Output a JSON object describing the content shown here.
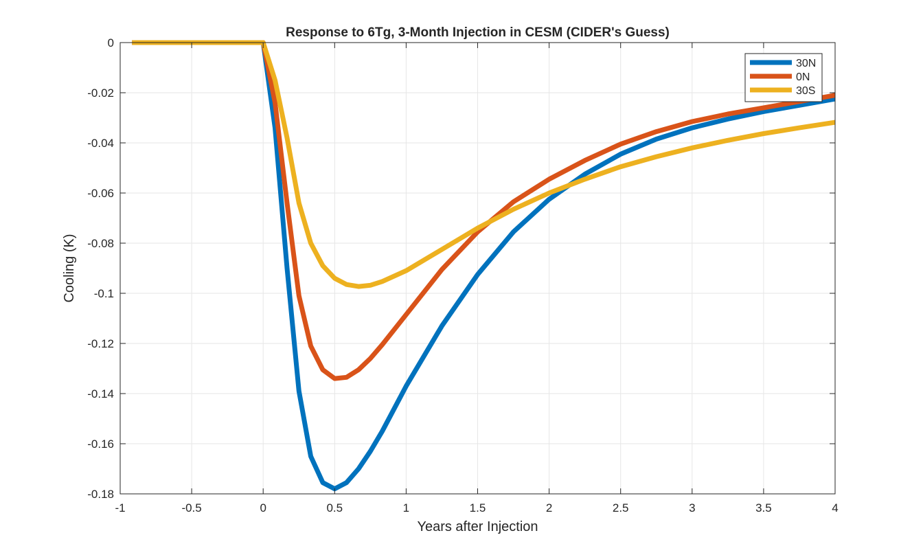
{
  "chart_data": {
    "type": "line",
    "title": "Response to 6Tg, 3-Month Injection in CESM (CIDER's Guess)",
    "xlabel": "Years after Injection",
    "ylabel": "Cooling (K)",
    "xlim": [
      -1,
      4
    ],
    "ylim": [
      -0.18,
      0
    ],
    "xticks": [
      -1,
      -0.5,
      0,
      0.5,
      1,
      1.5,
      2,
      2.5,
      3,
      3.5,
      4
    ],
    "xtick_labels": [
      "-1",
      "-0.5",
      "0",
      "0.5",
      "1",
      "1.5",
      "2",
      "2.5",
      "3",
      "3.5",
      "4"
    ],
    "yticks": [
      0,
      -0.02,
      -0.04,
      -0.06,
      -0.08,
      -0.1,
      -0.12,
      -0.14,
      -0.16,
      -0.18
    ],
    "ytick_labels": [
      "0",
      "-0.02",
      "-0.04",
      "-0.06",
      "-0.08",
      "-0.1",
      "-0.12",
      "-0.14",
      "-0.16",
      "-0.18"
    ],
    "grid": true,
    "legend_position": "top-right",
    "series": [
      {
        "name": "30N",
        "color": "#0072BD",
        "x": [
          -0.917,
          0,
          0.083,
          0.167,
          0.25,
          0.333,
          0.417,
          0.5,
          0.583,
          0.667,
          0.75,
          0.833,
          1,
          1.25,
          1.5,
          1.75,
          2,
          2.25,
          2.5,
          2.75,
          3,
          3.25,
          3.5,
          3.75,
          4
        ],
        "y": [
          0,
          0,
          -0.034,
          -0.09,
          -0.139,
          -0.165,
          -0.1755,
          -0.178,
          -0.1755,
          -0.17,
          -0.163,
          -0.155,
          -0.137,
          -0.113,
          -0.0925,
          -0.0755,
          -0.0625,
          -0.0525,
          -0.0445,
          -0.0385,
          -0.034,
          -0.0305,
          -0.0275,
          -0.025,
          -0.0225
        ]
      },
      {
        "name": "0N",
        "color": "#D95319",
        "x": [
          -0.917,
          0,
          0.083,
          0.167,
          0.25,
          0.333,
          0.417,
          0.5,
          0.583,
          0.667,
          0.75,
          0.833,
          1,
          1.25,
          1.5,
          1.75,
          2,
          2.25,
          2.5,
          2.75,
          3,
          3.25,
          3.5,
          3.75,
          4
        ],
        "y": [
          0,
          0,
          -0.024,
          -0.064,
          -0.101,
          -0.121,
          -0.1305,
          -0.134,
          -0.1335,
          -0.1305,
          -0.126,
          -0.1205,
          -0.1085,
          -0.0905,
          -0.0755,
          -0.0635,
          -0.0545,
          -0.047,
          -0.0405,
          -0.0355,
          -0.0315,
          -0.0285,
          -0.026,
          -0.0235,
          -0.021
        ]
      },
      {
        "name": "30S",
        "color": "#EDB120",
        "x": [
          -0.917,
          0,
          0.083,
          0.167,
          0.25,
          0.333,
          0.417,
          0.5,
          0.583,
          0.667,
          0.75,
          0.833,
          1,
          1.25,
          1.5,
          1.75,
          2,
          2.25,
          2.5,
          2.75,
          3,
          3.25,
          3.5,
          3.75,
          4
        ],
        "y": [
          0,
          0,
          -0.015,
          -0.038,
          -0.064,
          -0.08,
          -0.089,
          -0.094,
          -0.0965,
          -0.0973,
          -0.0968,
          -0.0953,
          -0.091,
          -0.0825,
          -0.074,
          -0.0665,
          -0.06,
          -0.0545,
          -0.0495,
          -0.0455,
          -0.042,
          -0.039,
          -0.0363,
          -0.034,
          -0.0318
        ]
      }
    ]
  }
}
